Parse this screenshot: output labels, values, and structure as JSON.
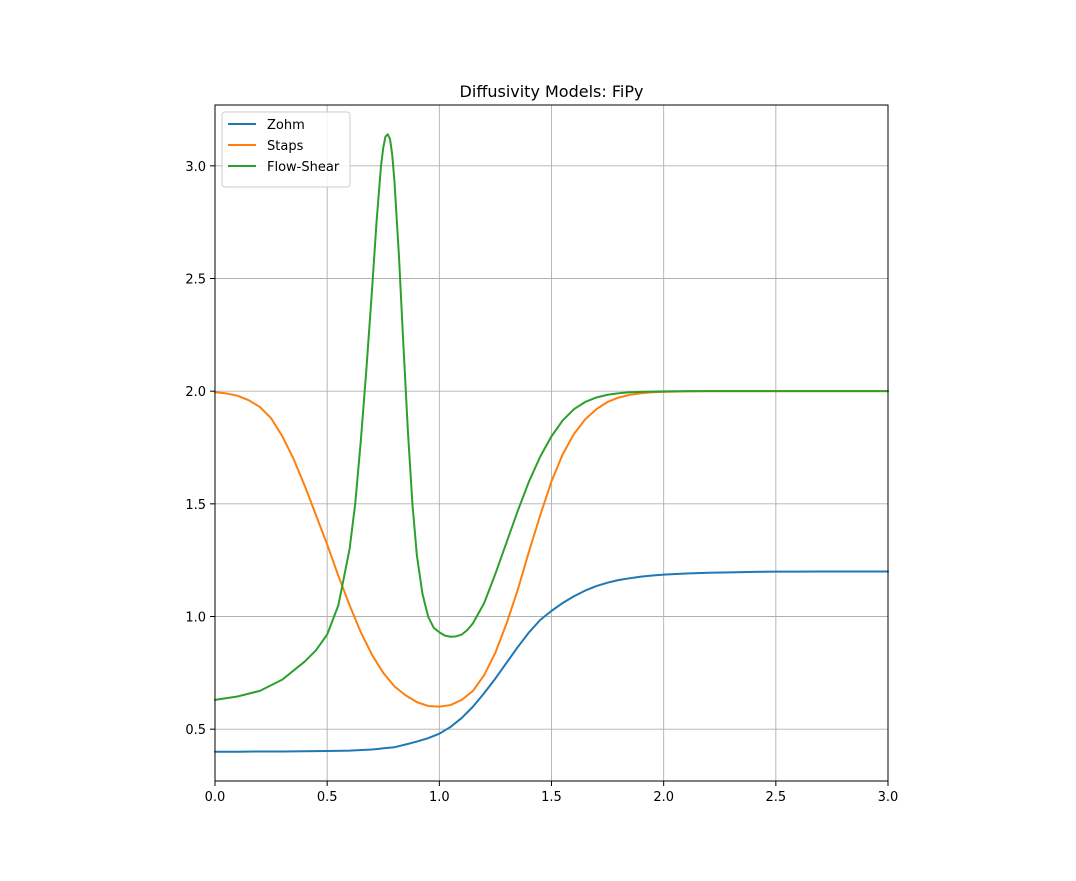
{
  "chart_data": {
    "type": "line",
    "title": "Diffusivity Models: FiPy",
    "xlabel": "",
    "ylabel": "",
    "xlim": [
      0.0,
      3.0
    ],
    "ylim": [
      0.27,
      3.27
    ],
    "grid": true,
    "legend_position": "top-left",
    "x_ticks": [
      0.0,
      0.5,
      1.0,
      1.5,
      2.0,
      2.5,
      3.0
    ],
    "x_tick_labels": [
      "0.0",
      "0.5",
      "1.0",
      "1.5",
      "2.0",
      "2.5",
      "3.0"
    ],
    "y_ticks": [
      0.5,
      1.0,
      1.5,
      2.0,
      2.5,
      3.0
    ],
    "y_tick_labels": [
      "0.5",
      "1.0",
      "1.5",
      "2.0",
      "2.5",
      "3.0"
    ],
    "series": [
      {
        "name": "Zohm",
        "color": "#1f77b4",
        "x": [
          0.0,
          0.1,
          0.2,
          0.3,
          0.4,
          0.5,
          0.6,
          0.7,
          0.8,
          0.85,
          0.9,
          0.95,
          1.0,
          1.05,
          1.1,
          1.15,
          1.2,
          1.25,
          1.3,
          1.35,
          1.4,
          1.45,
          1.5,
          1.55,
          1.6,
          1.65,
          1.7,
          1.75,
          1.8,
          1.85,
          1.9,
          1.95,
          2.0,
          2.1,
          2.2,
          2.3,
          2.4,
          2.5,
          2.6,
          2.7,
          2.8,
          2.9,
          3.0
        ],
        "y": [
          0.4,
          0.4,
          0.401,
          0.401,
          0.402,
          0.403,
          0.405,
          0.41,
          0.42,
          0.432,
          0.445,
          0.46,
          0.48,
          0.51,
          0.55,
          0.6,
          0.66,
          0.725,
          0.795,
          0.865,
          0.93,
          0.985,
          1.025,
          1.06,
          1.09,
          1.115,
          1.135,
          1.15,
          1.162,
          1.17,
          1.177,
          1.182,
          1.186,
          1.191,
          1.194,
          1.196,
          1.198,
          1.199,
          1.199,
          1.2,
          1.2,
          1.2,
          1.2
        ]
      },
      {
        "name": "Staps",
        "color": "#ff7f0e",
        "x": [
          0.0,
          0.05,
          0.1,
          0.15,
          0.2,
          0.25,
          0.3,
          0.35,
          0.4,
          0.45,
          0.5,
          0.55,
          0.6,
          0.65,
          0.7,
          0.75,
          0.8,
          0.85,
          0.9,
          0.95,
          1.0,
          1.05,
          1.1,
          1.15,
          1.2,
          1.25,
          1.3,
          1.35,
          1.4,
          1.45,
          1.5,
          1.55,
          1.6,
          1.65,
          1.7,
          1.75,
          1.8,
          1.85,
          1.9,
          1.95,
          2.0,
          2.1,
          2.2,
          2.4,
          2.6,
          2.8,
          3.0
        ],
        "y": [
          1.995,
          1.99,
          1.98,
          1.96,
          1.93,
          1.88,
          1.8,
          1.7,
          1.58,
          1.45,
          1.32,
          1.18,
          1.05,
          0.93,
          0.83,
          0.75,
          0.69,
          0.65,
          0.62,
          0.603,
          0.6,
          0.607,
          0.63,
          0.67,
          0.74,
          0.84,
          0.97,
          1.12,
          1.29,
          1.45,
          1.6,
          1.72,
          1.81,
          1.875,
          1.92,
          1.952,
          1.972,
          1.984,
          1.991,
          1.995,
          1.997,
          1.999,
          2.0,
          2.0,
          2.0,
          2.0,
          2.0
        ]
      },
      {
        "name": "Flow-Shear",
        "color": "#2ca02c",
        "x": [
          0.0,
          0.1,
          0.2,
          0.3,
          0.35,
          0.4,
          0.45,
          0.5,
          0.55,
          0.6,
          0.625,
          0.65,
          0.675,
          0.7,
          0.72,
          0.74,
          0.75,
          0.76,
          0.77,
          0.78,
          0.79,
          0.8,
          0.82,
          0.84,
          0.86,
          0.88,
          0.9,
          0.925,
          0.95,
          0.975,
          1.0,
          1.025,
          1.05,
          1.075,
          1.1,
          1.125,
          1.15,
          1.2,
          1.25,
          1.3,
          1.35,
          1.4,
          1.45,
          1.5,
          1.55,
          1.6,
          1.65,
          1.7,
          1.75,
          1.8,
          1.85,
          1.9,
          2.0,
          2.1,
          2.2,
          2.4,
          2.6,
          2.8,
          3.0
        ],
        "y": [
          0.63,
          0.645,
          0.67,
          0.72,
          0.76,
          0.8,
          0.85,
          0.92,
          1.05,
          1.3,
          1.5,
          1.78,
          2.1,
          2.45,
          2.75,
          3.0,
          3.08,
          3.13,
          3.14,
          3.12,
          3.05,
          2.93,
          2.6,
          2.2,
          1.82,
          1.5,
          1.27,
          1.1,
          1.0,
          0.95,
          0.93,
          0.915,
          0.91,
          0.912,
          0.92,
          0.94,
          0.97,
          1.06,
          1.19,
          1.33,
          1.47,
          1.6,
          1.71,
          1.8,
          1.87,
          1.92,
          1.952,
          1.972,
          1.984,
          1.991,
          1.995,
          1.997,
          1.999,
          2.0,
          2.0,
          2.0,
          2.0,
          2.0,
          2.0
        ]
      }
    ]
  }
}
